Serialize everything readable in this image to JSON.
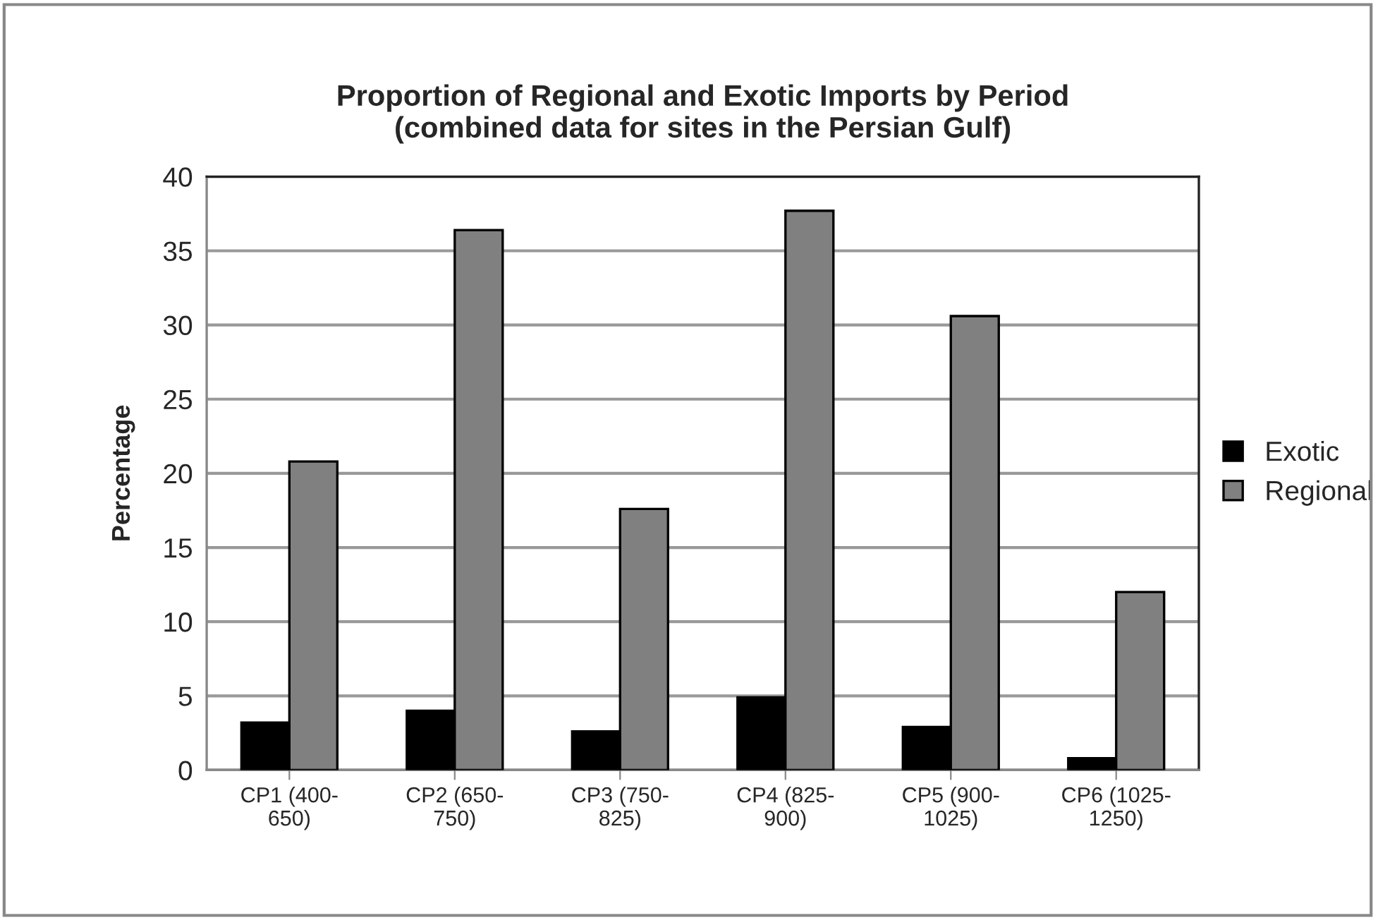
{
  "chart_data": {
    "type": "bar",
    "title": "Proportion of Regional and Exotic Imports by Period\n(combined data for sites in the Persian Gulf)",
    "ylabel": "Percentage",
    "categories": [
      "CP1 (400-650)",
      "CP2 (650-750)",
      "CP3 (750-825)",
      "CP4 (825-900)",
      "CP5 (900-1025)",
      "CP6 (1025-1250)"
    ],
    "series": [
      {
        "name": "Exotic",
        "color": "#000000",
        "values": [
          3.2,
          4.0,
          2.6,
          4.9,
          2.9,
          0.8
        ]
      },
      {
        "name": "Regional",
        "color": "#808080",
        "values": [
          20.8,
          36.4,
          17.6,
          37.7,
          30.6,
          12.0
        ]
      }
    ],
    "ylim": [
      0,
      40
    ],
    "yticks": [
      0,
      5,
      10,
      15,
      20,
      25,
      30,
      35,
      40
    ],
    "grid": "y",
    "legend": "right"
  }
}
